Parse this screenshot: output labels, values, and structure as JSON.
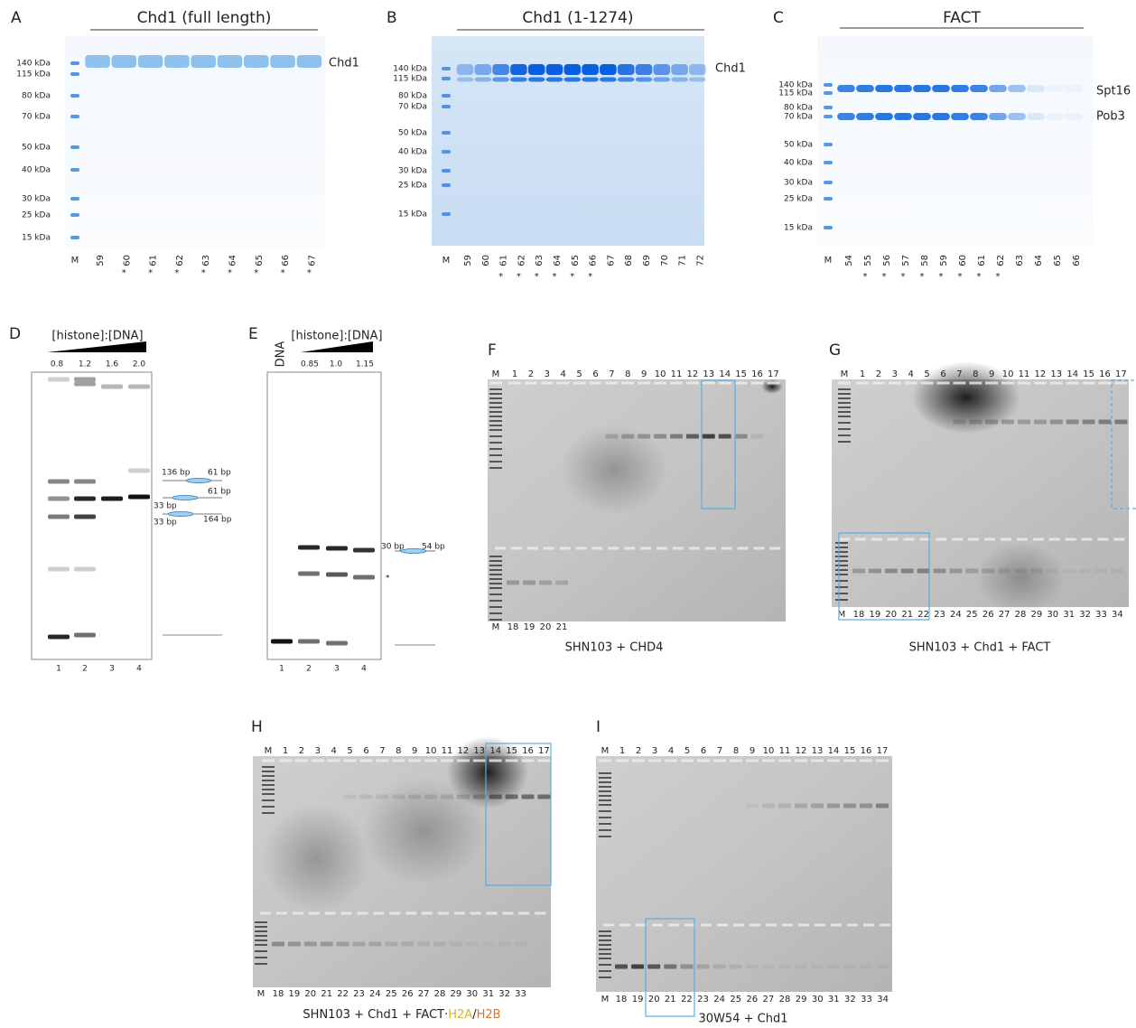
{
  "panels": [
    {
      "kind": "sds",
      "letter": "A",
      "title": "Chd1 (full length)",
      "markers": [
        "140 kDa",
        "115 kDa",
        "80 kDa",
        "70 kDa",
        "50 kDa",
        "40 kDa",
        "30 kDa",
        "25 kDa",
        "15 kDa"
      ],
      "lanes": [
        {
          "label": "M"
        },
        {
          "label": "59"
        },
        {
          "label": "60",
          "star": "*"
        },
        {
          "label": "61",
          "star": "*"
        },
        {
          "label": "62",
          "star": "*"
        },
        {
          "label": "63",
          "star": "*"
        },
        {
          "label": "64",
          "star": "*"
        },
        {
          "label": "65",
          "star": "*"
        },
        {
          "label": "66",
          "star": "*"
        },
        {
          "label": "67",
          "star": "*"
        }
      ],
      "band_labels": [
        "Chd1"
      ]
    },
    {
      "kind": "sds",
      "letter": "B",
      "title": "Chd1 (1-1274)",
      "markers": [
        "140 kDa",
        "115 kDa",
        "80 kDa",
        "70 kDa",
        "50 kDa",
        "40 kDa",
        "30 kDa",
        "25 kDa",
        "15 kDa"
      ],
      "lanes": [
        {
          "label": "M"
        },
        {
          "label": "59"
        },
        {
          "label": "60"
        },
        {
          "label": "61",
          "star": "*"
        },
        {
          "label": "62",
          "star": "*"
        },
        {
          "label": "63",
          "star": "*"
        },
        {
          "label": "64",
          "star": "*"
        },
        {
          "label": "65",
          "star": "*"
        },
        {
          "label": "66",
          "star": "*"
        },
        {
          "label": "67"
        },
        {
          "label": "68"
        },
        {
          "label": "69"
        },
        {
          "label": "70"
        },
        {
          "label": "71"
        },
        {
          "label": "72"
        }
      ],
      "band_labels": [
        "Chd1"
      ]
    },
    {
      "kind": "sds",
      "letter": "C",
      "title": "FACT",
      "markers": [
        "140 kDa",
        "115 kDa",
        "80 kDa",
        "70 kDa",
        "50 kDa",
        "40 kDa",
        "30 kDa",
        "25 kDa",
        "15 kDa"
      ],
      "lanes": [
        {
          "label": "M"
        },
        {
          "label": "54"
        },
        {
          "label": "55",
          "star": "*"
        },
        {
          "label": "56",
          "star": "*"
        },
        {
          "label": "57",
          "star": "*"
        },
        {
          "label": "58",
          "star": "*"
        },
        {
          "label": "59",
          "star": "*"
        },
        {
          "label": "60",
          "star": "*"
        },
        {
          "label": "61",
          "star": "*"
        },
        {
          "label": "62",
          "star": "*"
        },
        {
          "label": "63"
        },
        {
          "label": "64"
        },
        {
          "label": "65"
        },
        {
          "label": "66"
        }
      ],
      "band_labels": [
        "Spt16",
        "Pob3"
      ]
    },
    {
      "kind": "emsa",
      "letter": "D",
      "title": "[histone]:[DNA]",
      "ratios": [
        "0.8",
        "1.2",
        "1.6",
        "2.0"
      ],
      "lanes": [
        "1",
        "2",
        "3",
        "4"
      ],
      "annotations": [
        "136 bp",
        "61 bp",
        "61 bp",
        "33 bp",
        "33 bp",
        "164 bp"
      ]
    },
    {
      "kind": "emsa",
      "letter": "E",
      "title": "[histone]:[DNA]",
      "dna_label": "DNA",
      "ratios": [
        "0.85",
        "1.0",
        "1.15"
      ],
      "lanes": [
        "1",
        "2",
        "3",
        "4"
      ],
      "annotations": [
        "30 bp",
        "54 bp",
        "*"
      ]
    },
    {
      "kind": "agarose",
      "letter": "F",
      "lanes_top": [
        "M",
        "1",
        "2",
        "3",
        "4",
        "5",
        "6",
        "7",
        "8",
        "9",
        "10",
        "11",
        "12",
        "13",
        "14",
        "15",
        "16",
        "17"
      ],
      "lanes_bottom": [
        "M",
        "18",
        "19",
        "20",
        "21"
      ],
      "caption": "SHN103 + CHD4"
    },
    {
      "kind": "agarose",
      "letter": "G",
      "lanes_top": [
        "M",
        "1",
        "2",
        "3",
        "4",
        "5",
        "6",
        "7",
        "8",
        "9",
        "10",
        "11",
        "12",
        "13",
        "14",
        "15",
        "16",
        "17"
      ],
      "lanes_bottom": [
        "M",
        "18",
        "19",
        "20",
        "21",
        "22",
        "23",
        "24",
        "25",
        "26",
        "27",
        "28",
        "29",
        "30",
        "31",
        "32",
        "33",
        "34"
      ],
      "caption": "SHN103 + Chd1 + FACT"
    },
    {
      "kind": "agarose",
      "letter": "H",
      "lanes_top": [
        "M",
        "1",
        "2",
        "3",
        "4",
        "5",
        "6",
        "7",
        "8",
        "9",
        "10",
        "11",
        "12",
        "13",
        "14",
        "15",
        "16",
        "17"
      ],
      "lanes_bottom": [
        "M",
        "18",
        "19",
        "20",
        "21",
        "22",
        "23",
        "24",
        "25",
        "26",
        "27",
        "28",
        "29",
        "30",
        "31",
        "32",
        "33"
      ],
      "caption": [
        {
          "text": "SHN103 + Chd1 + FACT·"
        },
        {
          "text": "H2A",
          "color": "#d9b227"
        },
        {
          "text": "/"
        },
        {
          "text": "H2B",
          "color": "#e0751e"
        }
      ]
    },
    {
      "kind": "agarose",
      "letter": "I",
      "lanes_top": [
        "M",
        "1",
        "2",
        "3",
        "4",
        "5",
        "6",
        "7",
        "8",
        "9",
        "10",
        "11",
        "12",
        "13",
        "14",
        "15",
        "16",
        "17"
      ],
      "lanes_bottom": [
        "M",
        "18",
        "19",
        "20",
        "21",
        "22",
        "23",
        "24",
        "25",
        "26",
        "27",
        "28",
        "29",
        "30",
        "31",
        "32",
        "33",
        "34"
      ],
      "caption": "30W54 + Chd1"
    }
  ]
}
